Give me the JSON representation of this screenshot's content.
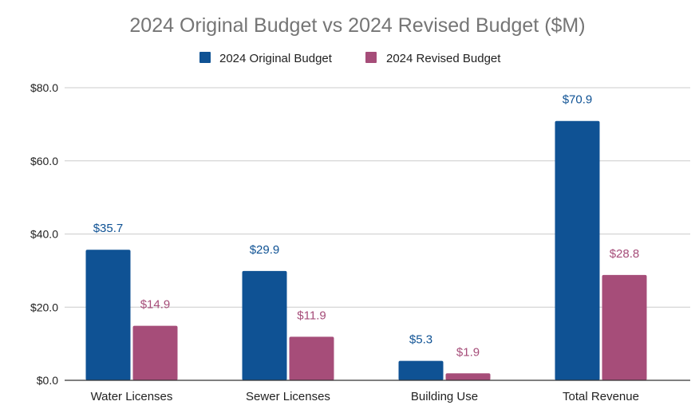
{
  "chart_data": {
    "type": "bar",
    "title": "2024 Original Budget vs 2024 Revised Budget ($M)",
    "xlabel": "",
    "ylabel": "",
    "categories": [
      "Water Licenses",
      "Sewer Licenses",
      "Building Use",
      "Total Revenue"
    ],
    "series": [
      {
        "name": "2024 Original Budget",
        "color": "#0f5294",
        "values": [
          35.7,
          29.9,
          5.3,
          70.9
        ],
        "labels": [
          "$35.7",
          "$29.9",
          "$5.3",
          "$70.9"
        ]
      },
      {
        "name": "2024 Revised Budget",
        "color": "#a64d79",
        "values": [
          14.9,
          11.9,
          1.9,
          28.8
        ],
        "labels": [
          "$14.9",
          "$11.9",
          "$1.9",
          "$28.8"
        ]
      }
    ],
    "ylim": [
      0,
      80
    ],
    "yticks": [
      0,
      20,
      40,
      60,
      80
    ],
    "ytick_labels": [
      "$0.0",
      "$20.0",
      "$40.0",
      "$60.0",
      "$80.0"
    ],
    "grid": true,
    "legend_position": "top-center"
  }
}
